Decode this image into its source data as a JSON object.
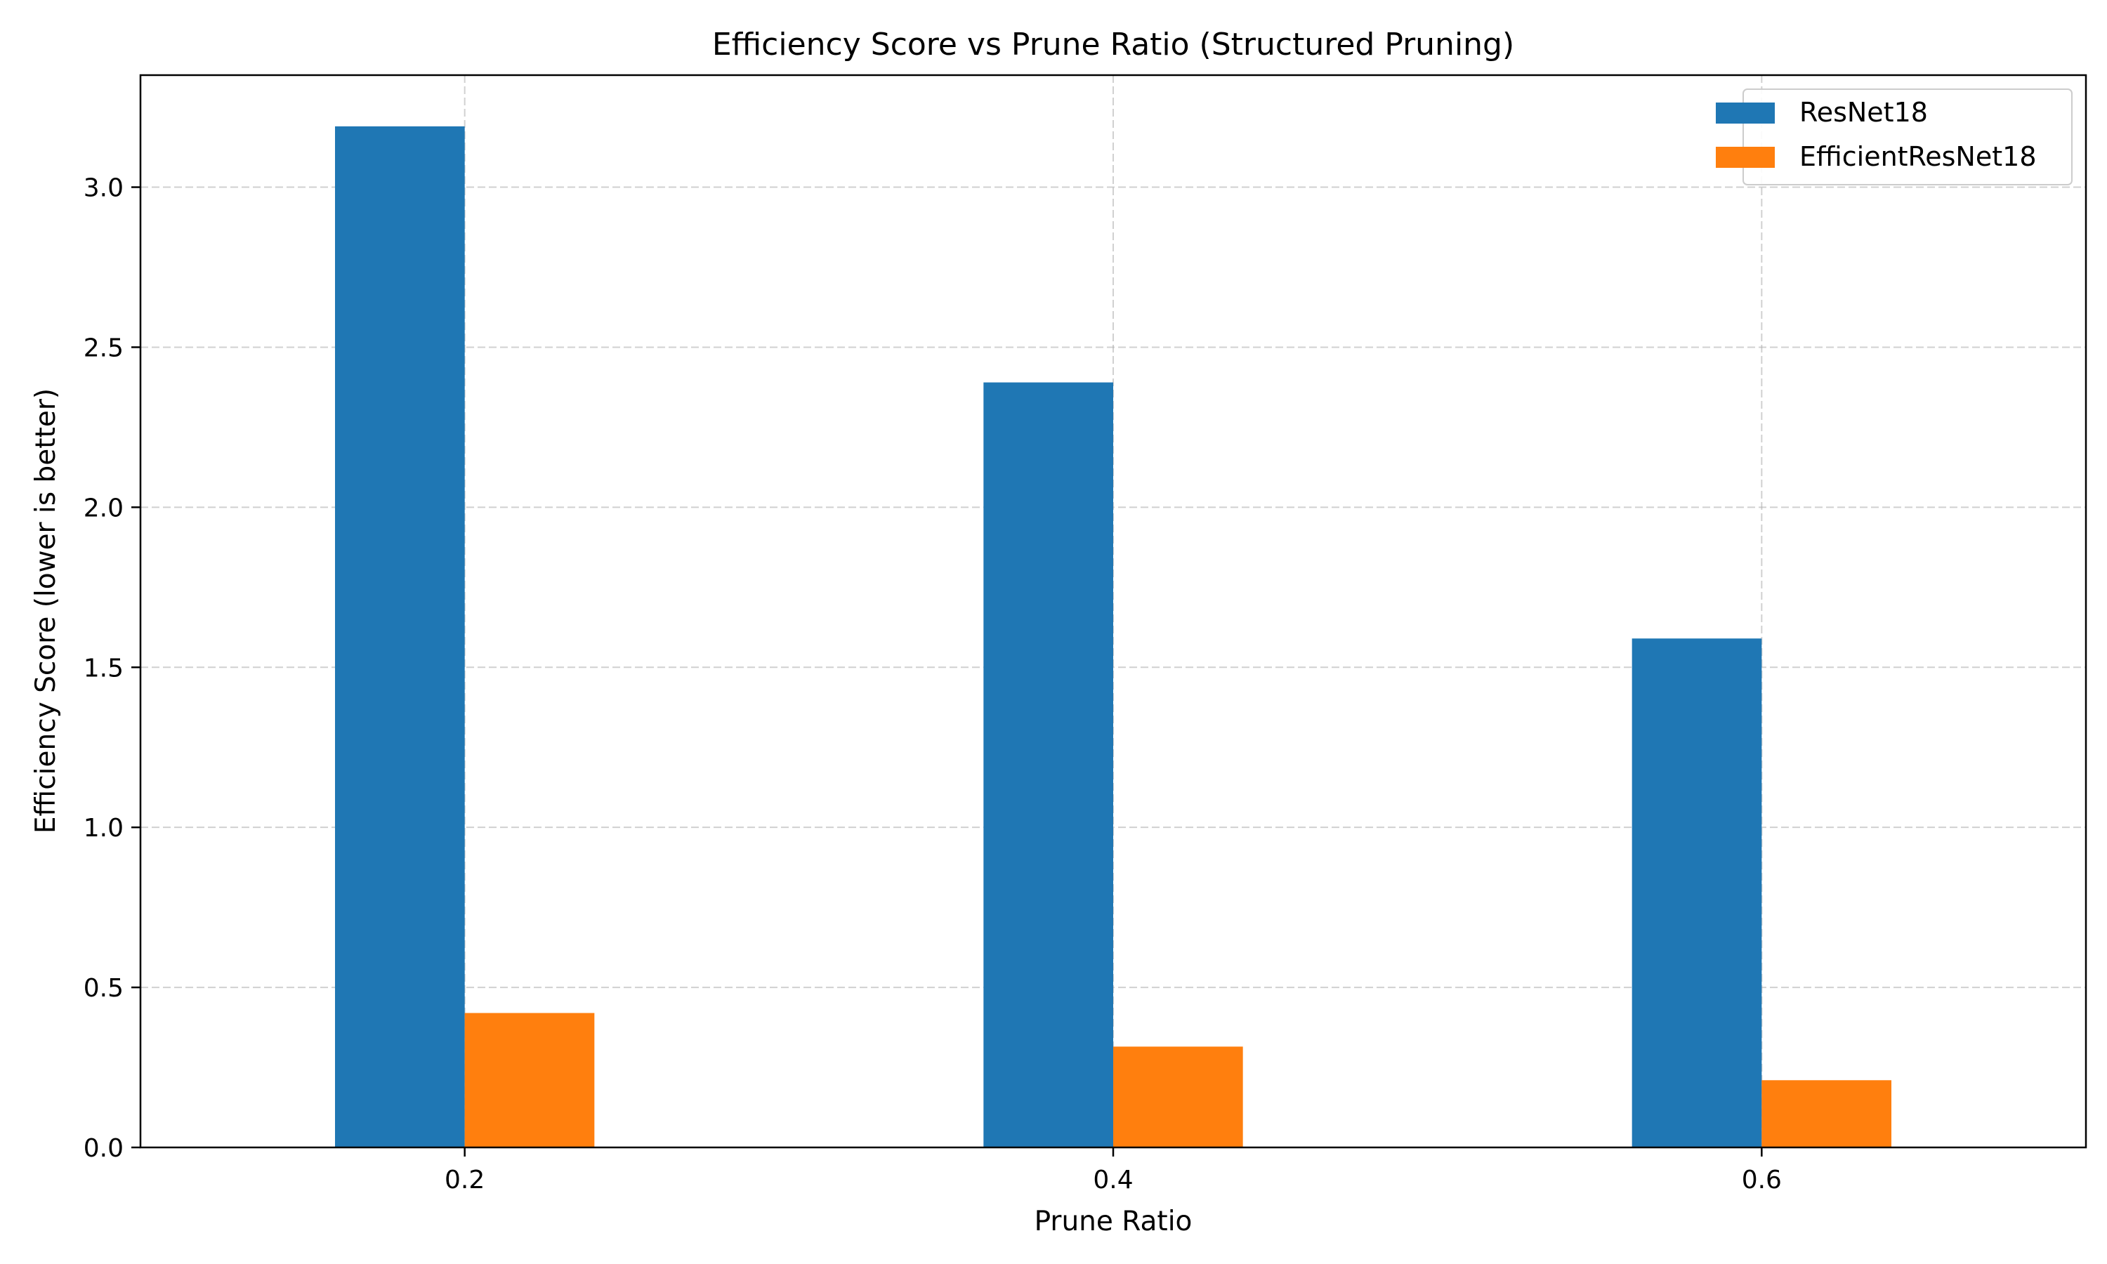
{
  "chart_data": {
    "type": "bar",
    "title": "Efficiency Score vs Prune Ratio (Structured Pruning)",
    "xlabel": "Prune Ratio",
    "ylabel": "Efficiency Score (lower is better)",
    "categories": [
      0.2,
      0.4,
      0.6
    ],
    "xtick_labels": [
      "0.2",
      "0.4",
      "0.6"
    ],
    "ylim": [
      0,
      3.35
    ],
    "yticks": [
      0,
      0.5,
      1.0,
      1.5,
      2.0,
      2.5,
      3.0
    ],
    "ytick_labels": [
      "0.0",
      "0.5",
      "1.0",
      "1.5",
      "2.0",
      "2.5",
      "3.0"
    ],
    "grid": true,
    "grid_style": "dashed",
    "legend_position": "top-right",
    "series": [
      {
        "name": "ResNet18",
        "color": "#1f77b4",
        "values": [
          3.19,
          2.39,
          1.59
        ]
      },
      {
        "name": "EfficientResNet18",
        "color": "#ff7f0e",
        "values": [
          0.42,
          0.315,
          0.21
        ]
      }
    ]
  }
}
